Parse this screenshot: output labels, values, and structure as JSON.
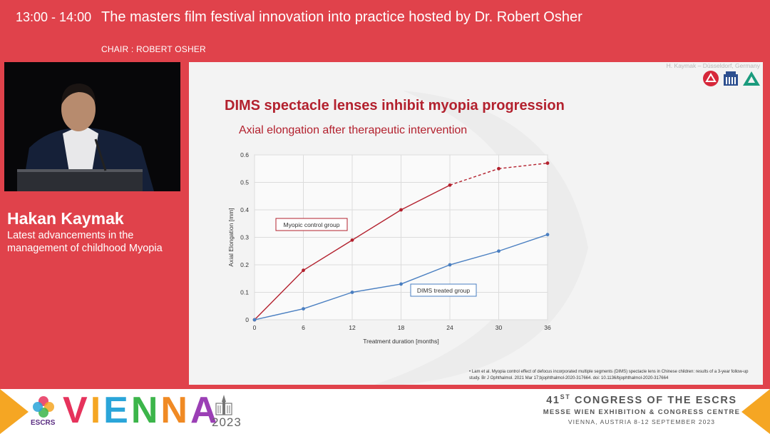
{
  "header": {
    "time": "13:00 - 14:00",
    "title": "The masters film festival innovation into practice hosted by Dr. Robert Osher",
    "chair": "CHAIR : ROBERT OSHER"
  },
  "speaker": {
    "name": "Hakan Kaymak",
    "talk_title": "Latest advancements in the management of childhood Myopia"
  },
  "slide": {
    "author": "H. Kaymak – Düsseldorf, Germany",
    "title": "DIMS spectacle lenses inhibit myopia progression",
    "subtitle": "Axial elongation after therapeutic intervention",
    "citation": "•    Lam et al. Myopia control effect of defocus incorporated multiple segments (DIMS) spectacle lens in Chinese children: results of a 3-year follow-up study. Br J Ophthalmol. 2021 Mar 17;bjophthalmol-2020-317664. doi: 10.1136/bjophthalmol-2020-317664",
    "logos": [
      "red-circle-logo",
      "building-logo",
      "triangle-logo"
    ]
  },
  "chart_data": {
    "type": "line",
    "xlabel": "Treatment duration [months]",
    "ylabel": "Axial Elongation [mm]",
    "x": [
      0,
      6,
      12,
      18,
      24,
      30,
      36
    ],
    "xlim": [
      0,
      36
    ],
    "ylim": [
      0,
      0.6
    ],
    "xticks": [
      "0",
      "6",
      "12",
      "18",
      "24",
      "30",
      "36"
    ],
    "yticks": [
      "0",
      "0.1",
      "0.2",
      "0.3",
      "0.4",
      "0.5",
      "0.6"
    ],
    "grid": true,
    "series": [
      {
        "name": "Myopic control group",
        "color": "#b3212e",
        "values": [
          0,
          0.18,
          0.29,
          0.4,
          0.49,
          0.55,
          0.57
        ],
        "dashed_from_index": 4
      },
      {
        "name": "DIMS treated group",
        "color": "#4a7fc1",
        "values": [
          0,
          0.04,
          0.1,
          0.13,
          0.2,
          0.25,
          0.31
        ]
      }
    ]
  },
  "footer": {
    "congress_number": "41",
    "congress_suffix": "ST",
    "congress_text": " CONGRESS OF THE ESCRS",
    "venue": "MESSE WIEN EXHIBITION & CONGRESS CENTRE",
    "dates": "VIENNA, AUSTRIA 8-12 SEPTEMBER 2023",
    "vienna": [
      "V",
      "I",
      "E",
      "N",
      "N",
      "A"
    ],
    "vienna_colors": [
      "#e6335c",
      "#f5a623",
      "#2aa5d9",
      "#3cb54a",
      "#f08a24",
      "#9b3fb5"
    ],
    "year": "2023",
    "escrs": "ESCRS"
  }
}
